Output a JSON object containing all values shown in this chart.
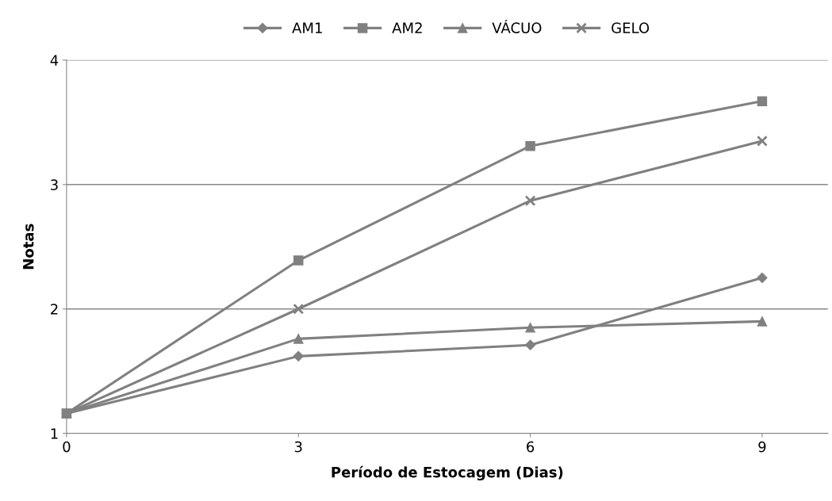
{
  "chart_data": {
    "type": "line",
    "xlabel": "Período de Estocagem (Dias)",
    "ylabel": "Notas",
    "x": [
      0,
      3,
      6,
      9
    ],
    "series": [
      {
        "name": "AM1",
        "color": "#808080",
        "marker": "diamond",
        "values": [
          1.16,
          1.62,
          1.71,
          2.25
        ]
      },
      {
        "name": "AM2",
        "color": "#808080",
        "marker": "square",
        "values": [
          1.16,
          2.39,
          3.31,
          3.67
        ]
      },
      {
        "name": "VÁCUO",
        "color": "#808080",
        "marker": "triangle",
        "values": [
          1.16,
          1.76,
          1.85,
          1.9
        ]
      },
      {
        "name": "GELO",
        "color": "#808080",
        "marker": "cross",
        "values": [
          1.16,
          2.0,
          2.87,
          3.35
        ]
      }
    ],
    "xlim": [
      0,
      9.85
    ],
    "xticks": [
      0,
      3,
      6,
      9
    ],
    "ylim": [
      1,
      4
    ],
    "yticks": [
      1,
      2,
      3,
      4
    ],
    "grid": "y",
    "legend": "top",
    "line_style": "solid"
  }
}
